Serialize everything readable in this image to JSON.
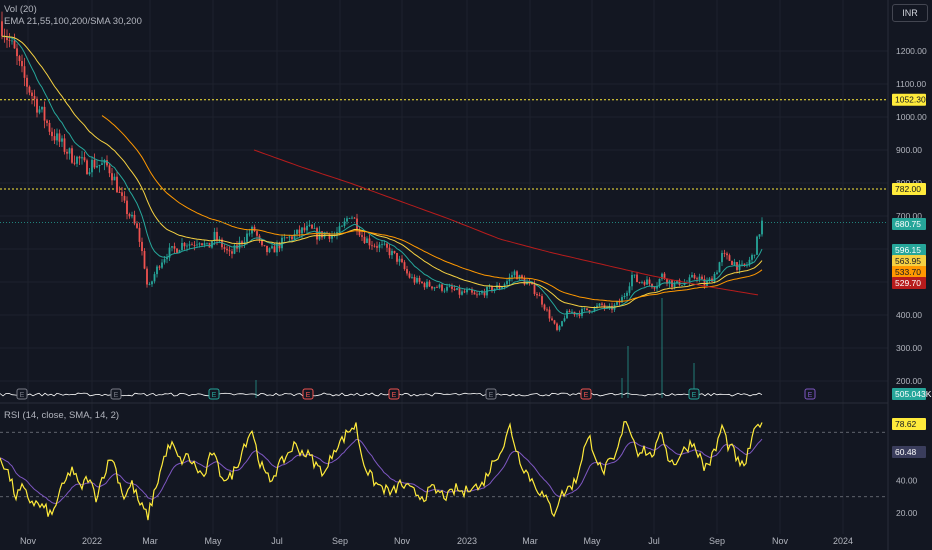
{
  "legend": {
    "line1": "Vol (20)",
    "line2": "EMA 21,55,100,200/SMA 30,200",
    "rsi": "RSI (14, close, SMA, 14, 2)"
  },
  "currency": "INR",
  "colors": {
    "background": "#131722",
    "grid": "#1e222d",
    "up": "#26a69a",
    "down": "#ef5350",
    "ema21": "#26a69a",
    "ema55": "#f5d142",
    "ema100": "#ff9800",
    "sma200": "#b71c1c",
    "volume_line": "#ffffff",
    "rsi": "#ffeb3b",
    "rsi_ma": "#7e57c2",
    "level_line": "#ffeb3b"
  },
  "chart_data": [
    {
      "type": "line",
      "title": "",
      "price_axis_ticks": [
        "1200.00",
        "1100.00",
        "1000.00",
        "900.00",
        "800.00",
        "700.00",
        "600.00",
        "500.00",
        "400.00",
        "300.00",
        "200.00"
      ],
      "price_axis_values": [
        1200,
        1100,
        1000,
        900,
        800,
        700,
        600,
        500,
        400,
        300,
        200
      ],
      "ylim": [
        150,
        1260
      ],
      "x_tick_labels": [
        "Nov",
        "2022",
        "Mar",
        "May",
        "Jul",
        "Sep",
        "Nov",
        "2023",
        "Mar",
        "May",
        "Jul",
        "Sep",
        "Nov",
        "2024"
      ],
      "horizontal_levels": [
        {
          "value": 1052.3,
          "label": "1052.30"
        },
        {
          "value": 782.0,
          "label": "782.00"
        }
      ],
      "price_labels": [
        {
          "label": "680.75",
          "value": 680.75,
          "color": "#26a69a",
          "text_color": "#ffffff"
        },
        {
          "label": "596.15",
          "value": 596.15,
          "color": "#26a69a",
          "text_color": "#ffffff"
        },
        {
          "label": "563.95",
          "value": 563.95,
          "color": "#f5d142",
          "text_color": "#131722"
        },
        {
          "label": "533.70",
          "value": 533.7,
          "color": "#ff9800",
          "text_color": "#131722"
        },
        {
          "label": "529.70",
          "value": 529.7,
          "color": "#b71c1c",
          "text_color": "#ffffff"
        }
      ],
      "volume_label": "505.043K",
      "close_anchors": [
        [
          0,
          1290
        ],
        [
          6,
          1250
        ],
        [
          14,
          1200
        ],
        [
          22,
          1130
        ],
        [
          30,
          1080
        ],
        [
          38,
          1030
        ],
        [
          44,
          1000
        ],
        [
          52,
          950
        ],
        [
          58,
          930
        ],
        [
          66,
          900
        ],
        [
          72,
          880
        ],
        [
          80,
          870
        ],
        [
          86,
          845
        ],
        [
          92,
          860
        ],
        [
          100,
          855
        ],
        [
          108,
          850
        ],
        [
          114,
          815
        ],
        [
          120,
          760
        ],
        [
          126,
          720
        ],
        [
          132,
          690
        ],
        [
          138,
          650
        ],
        [
          144,
          560
        ],
        [
          148,
          470
        ],
        [
          154,
          520
        ],
        [
          160,
          560
        ],
        [
          168,
          590
        ],
        [
          176,
          600
        ],
        [
          184,
          620
        ],
        [
          192,
          615
        ],
        [
          200,
          630
        ],
        [
          208,
          600
        ],
        [
          214,
          640
        ],
        [
          222,
          610
        ],
        [
          230,
          580
        ],
        [
          238,
          610
        ],
        [
          246,
          640
        ],
        [
          254,
          660
        ],
        [
          262,
          600
        ],
        [
          270,
          590
        ],
        [
          278,
          610
        ],
        [
          286,
          630
        ],
        [
          294,
          640
        ],
        [
          302,
          655
        ],
        [
          310,
          660
        ],
        [
          318,
          640
        ],
        [
          326,
          650
        ],
        [
          334,
          640
        ],
        [
          342,
          660
        ],
        [
          350,
          710
        ],
        [
          356,
          680
        ],
        [
          362,
          640
        ],
        [
          370,
          620
        ],
        [
          378,
          610
        ],
        [
          386,
          600
        ],
        [
          394,
          580
        ],
        [
          400,
          560
        ],
        [
          408,
          520
        ],
        [
          414,
          505
        ],
        [
          422,
          495
        ],
        [
          430,
          490
        ],
        [
          438,
          485
        ],
        [
          446,
          480
        ],
        [
          454,
          475
        ],
        [
          460,
          465
        ],
        [
          468,
          470
        ],
        [
          476,
          455
        ],
        [
          484,
          470
        ],
        [
          492,
          480
        ],
        [
          500,
          485
        ],
        [
          508,
          505
        ],
        [
          514,
          530
        ],
        [
          520,
          510
        ],
        [
          528,
          495
        ],
        [
          536,
          470
        ],
        [
          542,
          440
        ],
        [
          548,
          405
        ],
        [
          554,
          370
        ],
        [
          558,
          345
        ],
        [
          564,
          395
        ],
        [
          570,
          410
        ],
        [
          578,
          405
        ],
        [
          586,
          415
        ],
        [
          594,
          420
        ],
        [
          602,
          430
        ],
        [
          608,
          415
        ],
        [
          614,
          425
        ],
        [
          620,
          440
        ],
        [
          626,
          470
        ],
        [
          632,
          520
        ],
        [
          638,
          500
        ],
        [
          644,
          505
        ],
        [
          650,
          495
        ],
        [
          656,
          490
        ],
        [
          662,
          520
        ],
        [
          668,
          505
        ],
        [
          674,
          490
        ],
        [
          680,
          500
        ],
        [
          686,
          495
        ],
        [
          692,
          510
        ],
        [
          698,
          520
        ],
        [
          704,
          490
        ],
        [
          710,
          505
        ],
        [
          716,
          530
        ],
        [
          722,
          580
        ],
        [
          728,
          570
        ],
        [
          734,
          560
        ],
        [
          740,
          540
        ],
        [
          746,
          550
        ],
        [
          752,
          575
        ],
        [
          756,
          610
        ],
        [
          760,
          660
        ],
        [
          763,
          690
        ]
      ],
      "series": [
        {
          "name": "EMA 21",
          "color": "#26a69a"
        },
        {
          "name": "EMA 55",
          "color": "#f5d142"
        },
        {
          "name": "EMA 100",
          "color": "#ff9800"
        },
        {
          "name": "SMA 200",
          "color": "#b71c1c"
        }
      ]
    },
    {
      "type": "line",
      "title": "",
      "ylim": [
        10,
        90
      ],
      "y_ticks": [
        "20.00",
        "40.00"
      ],
      "y_tick_values": [
        20,
        40
      ],
      "bands": [
        70,
        30
      ],
      "labels": [
        {
          "label": "78.62",
          "value": 78.62,
          "color": "#ffeb3b",
          "text_color": "#131722"
        },
        {
          "label": "60.48",
          "value": 60.48,
          "color": "#3a3d5c",
          "text_color": "#ffffff"
        }
      ],
      "rsi_anchors": [
        [
          0,
          55
        ],
        [
          8,
          45
        ],
        [
          16,
          30
        ],
        [
          22,
          35
        ],
        [
          30,
          28
        ],
        [
          38,
          25
        ],
        [
          46,
          22
        ],
        [
          52,
          18
        ],
        [
          58,
          30
        ],
        [
          66,
          40
        ],
        [
          72,
          48
        ],
        [
          80,
          35
        ],
        [
          88,
          42
        ],
        [
          96,
          30
        ],
        [
          104,
          45
        ],
        [
          112,
          55
        ],
        [
          118,
          42
        ],
        [
          124,
          30
        ],
        [
          132,
          38
        ],
        [
          140,
          25
        ],
        [
          148,
          18
        ],
        [
          154,
          32
        ],
        [
          160,
          45
        ],
        [
          166,
          58
        ],
        [
          172,
          62
        ],
        [
          180,
          52
        ],
        [
          188,
          55
        ],
        [
          196,
          48
        ],
        [
          204,
          42
        ],
        [
          212,
          58
        ],
        [
          220,
          45
        ],
        [
          228,
          40
        ],
        [
          236,
          48
        ],
        [
          244,
          62
        ],
        [
          252,
          72
        ],
        [
          258,
          55
        ],
        [
          264,
          45
        ],
        [
          270,
          40
        ],
        [
          278,
          48
        ],
        [
          286,
          55
        ],
        [
          294,
          62
        ],
        [
          302,
          58
        ],
        [
          310,
          55
        ],
        [
          318,
          48
        ],
        [
          326,
          45
        ],
        [
          334,
          60
        ],
        [
          342,
          65
        ],
        [
          350,
          72
        ],
        [
          356,
          74
        ],
        [
          362,
          55
        ],
        [
          368,
          45
        ],
        [
          376,
          38
        ],
        [
          384,
          35
        ],
        [
          392,
          32
        ],
        [
          400,
          38
        ],
        [
          408,
          35
        ],
        [
          416,
          32
        ],
        [
          424,
          30
        ],
        [
          432,
          35
        ],
        [
          440,
          32
        ],
        [
          448,
          30
        ],
        [
          456,
          35
        ],
        [
          464,
          32
        ],
        [
          472,
          38
        ],
        [
          480,
          35
        ],
        [
          488,
          45
        ],
        [
          496,
          55
        ],
        [
          504,
          62
        ],
        [
          510,
          74
        ],
        [
          516,
          60
        ],
        [
          522,
          50
        ],
        [
          530,
          42
        ],
        [
          538,
          35
        ],
        [
          546,
          28
        ],
        [
          554,
          20
        ],
        [
          560,
          30
        ],
        [
          568,
          35
        ],
        [
          576,
          40
        ],
        [
          584,
          60
        ],
        [
          590,
          66
        ],
        [
          596,
          55
        ],
        [
          602,
          45
        ],
        [
          608,
          50
        ],
        [
          614,
          52
        ],
        [
          620,
          64
        ],
        [
          626,
          79
        ],
        [
          632,
          68
        ],
        [
          638,
          58
        ],
        [
          644,
          60
        ],
        [
          650,
          55
        ],
        [
          656,
          60
        ],
        [
          662,
          70
        ],
        [
          668,
          55
        ],
        [
          674,
          50
        ],
        [
          680,
          56
        ],
        [
          686,
          60
        ],
        [
          692,
          64
        ],
        [
          698,
          58
        ],
        [
          704,
          48
        ],
        [
          710,
          52
        ],
        [
          716,
          60
        ],
        [
          722,
          74
        ],
        [
          728,
          62
        ],
        [
          734,
          58
        ],
        [
          740,
          48
        ],
        [
          746,
          52
        ],
        [
          752,
          66
        ],
        [
          758,
          74
        ],
        [
          763,
          79
        ]
      ]
    }
  ]
}
